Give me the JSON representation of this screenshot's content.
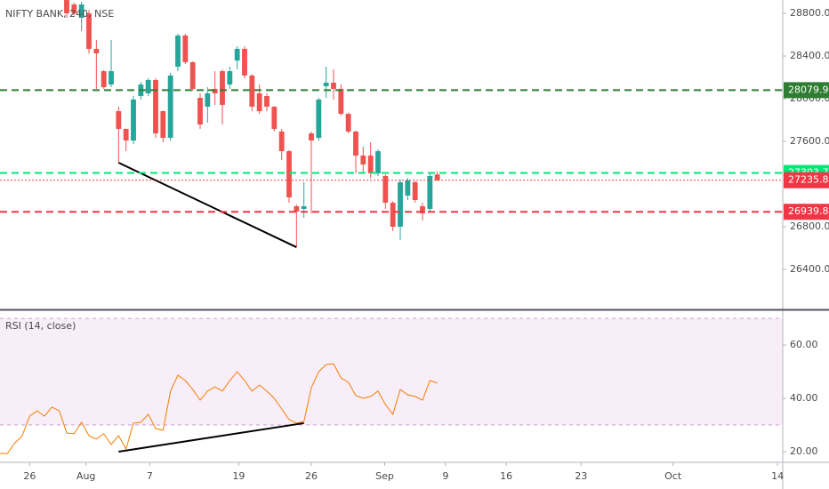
{
  "chart_data": [
    {
      "type": "candlestick",
      "title": "NIFTY BANK, 240, NSE",
      "open": [
        28925,
        28883,
        28758,
        28800,
        28467,
        28258,
        28133,
        27883,
        27717,
        27608,
        28025,
        28050,
        28175,
        27883,
        27633,
        28300,
        28592,
        28342,
        28008,
        27925,
        28092,
        28258,
        28133,
        28358,
        28467,
        28217,
        28050,
        28025,
        27925,
        27692,
        27508,
        26992,
        26967,
        27675,
        27633,
        28117,
        28150,
        28092,
        27858,
        27692,
        27467,
        27467,
        27300,
        27275,
        27025,
        26800,
        27092,
        27217,
        26992,
        26967,
        27290
      ],
      "high": [
        28950,
        28900,
        28908,
        28830,
        28550,
        28270,
        28550,
        27925,
        27720,
        28025,
        28158,
        28192,
        28192,
        27890,
        28242,
        28608,
        28608,
        28350,
        28050,
        28108,
        28258,
        28275,
        28300,
        28492,
        28492,
        28230,
        28133,
        28050,
        27930,
        27717,
        27520,
        27008,
        27217,
        27692,
        28008,
        28300,
        28275,
        28133,
        27870,
        27700,
        27550,
        27592,
        27525,
        27290,
        27040,
        27242,
        27258,
        27230,
        27025,
        27300,
        27320
      ],
      "low": [
        28758,
        28780,
        28633,
        28425,
        28092,
        28092,
        28108,
        27400,
        27508,
        27575,
        27992,
        28025,
        27633,
        27592,
        27608,
        28258,
        28325,
        28075,
        27717,
        27775,
        27942,
        27758,
        28092,
        28275,
        28192,
        27883,
        27858,
        27883,
        27692,
        27425,
        27025,
        26608,
        26883,
        26925,
        27608,
        28008,
        27992,
        27842,
        27675,
        27300,
        27300,
        27258,
        27275,
        26967,
        26758,
        26675,
        27050,
        27025,
        26858,
        26942,
        27230
      ],
      "close": [
        28800,
        28800,
        28883,
        28467,
        28425,
        28108,
        28258,
        27717,
        27608,
        27992,
        28133,
        28175,
        27675,
        27633,
        28217,
        28592,
        28342,
        28092,
        27758,
        28050,
        28050,
        27942,
        28258,
        28467,
        28217,
        27925,
        27883,
        27925,
        27717,
        27508,
        27075,
        26942,
        26992,
        27608,
        27992,
        28150,
        28092,
        27858,
        27692,
        27467,
        27383,
        27300,
        27508,
        27025,
        26800,
        27217,
        27233,
        27050,
        26925,
        27275,
        27236
      ],
      "up_color": "#26a69a",
      "down_color": "#ef5350",
      "xlim": [
        -9,
        96.6
      ],
      "ylim": [
        26025,
        28925
      ],
      "yticks": [
        {
          "value": 26400,
          "label": "26400.00"
        },
        {
          "value": 26800,
          "label": "26800.00"
        },
        {
          "value": 27600,
          "label": "27600.00"
        },
        {
          "value": 28000,
          "label": "28000.00"
        },
        {
          "value": 28400,
          "label": "28400.00"
        },
        {
          "value": 28800,
          "label": "28800.00"
        }
      ],
      "hlines": [
        {
          "value": 28079.98,
          "color": "#2e7d32",
          "style": "dashed"
        },
        {
          "value": 27303.75,
          "color": "#00e676",
          "style": "dashed"
        },
        {
          "value": 27235.85,
          "color": "#f23645",
          "style": "dotted"
        },
        {
          "value": 26939.89,
          "color": "#f23645",
          "style": "dashed"
        }
      ],
      "trendlines": [
        {
          "x": [
            7,
            31
          ],
          "y": [
            27400,
            26608
          ],
          "color": "#000000"
        }
      ]
    },
    {
      "type": "line",
      "title": "RSI (14, close)",
      "x": [
        -9,
        -8,
        -7,
        -6,
        -5,
        -4,
        -3,
        -2,
        -1,
        0,
        1,
        2,
        3,
        4,
        5,
        6,
        7,
        8,
        9,
        10,
        11,
        12,
        13,
        14,
        15,
        16,
        17,
        18,
        19,
        20,
        21,
        22,
        23,
        24,
        25,
        26,
        27,
        28,
        29,
        30,
        31,
        32,
        33,
        34,
        35,
        36,
        37,
        38,
        39,
        40,
        41,
        42,
        43,
        44,
        45,
        46,
        47,
        48,
        49,
        50
      ],
      "values": [
        19.3,
        19.3,
        23.3,
        26,
        33.3,
        35.3,
        33.3,
        36.7,
        35.3,
        27,
        26.7,
        31,
        26,
        24.7,
        26.7,
        22.7,
        26,
        21,
        30.7,
        31,
        34,
        28.7,
        28,
        42.7,
        48.7,
        46.7,
        43.3,
        39.3,
        42.7,
        44.3,
        42.7,
        46.7,
        50,
        46.7,
        42.7,
        45,
        42.7,
        40,
        36,
        32,
        30.7,
        31.3,
        44,
        50,
        52.7,
        53,
        47.7,
        46,
        41,
        40,
        40.7,
        42.7,
        37.7,
        34,
        43.3,
        41.3,
        40.7,
        39.3,
        46.7,
        45.7
      ],
      "color": "#f57c00",
      "band": [
        30,
        70
      ],
      "band_color": "#9c27b0",
      "xlim": [
        -9,
        96.6
      ],
      "ylim": [
        16,
        72.7
      ],
      "yticks": [
        {
          "value": 20,
          "label": "20.00"
        },
        {
          "value": 40,
          "label": "40.00"
        },
        {
          "value": 60,
          "label": "60.00"
        }
      ],
      "xticks": [
        {
          "value": -5,
          "label": "26"
        },
        {
          "value": 2.6,
          "label": "Aug"
        },
        {
          "value": 11.2,
          "label": "7"
        },
        {
          "value": 23.2,
          "label": "19"
        },
        {
          "value": 33,
          "label": "26"
        },
        {
          "value": 42.9,
          "label": "Sep"
        },
        {
          "value": 51.1,
          "label": "9"
        },
        {
          "value": 59.3,
          "label": "16"
        },
        {
          "value": 69.4,
          "label": "23"
        },
        {
          "value": 81.8,
          "label": "Oct"
        },
        {
          "value": 95.9,
          "label": "14"
        }
      ],
      "trendlines": [
        {
          "x": [
            7,
            32
          ],
          "y": [
            20,
            30.7
          ],
          "color": "#000000"
        }
      ]
    }
  ]
}
